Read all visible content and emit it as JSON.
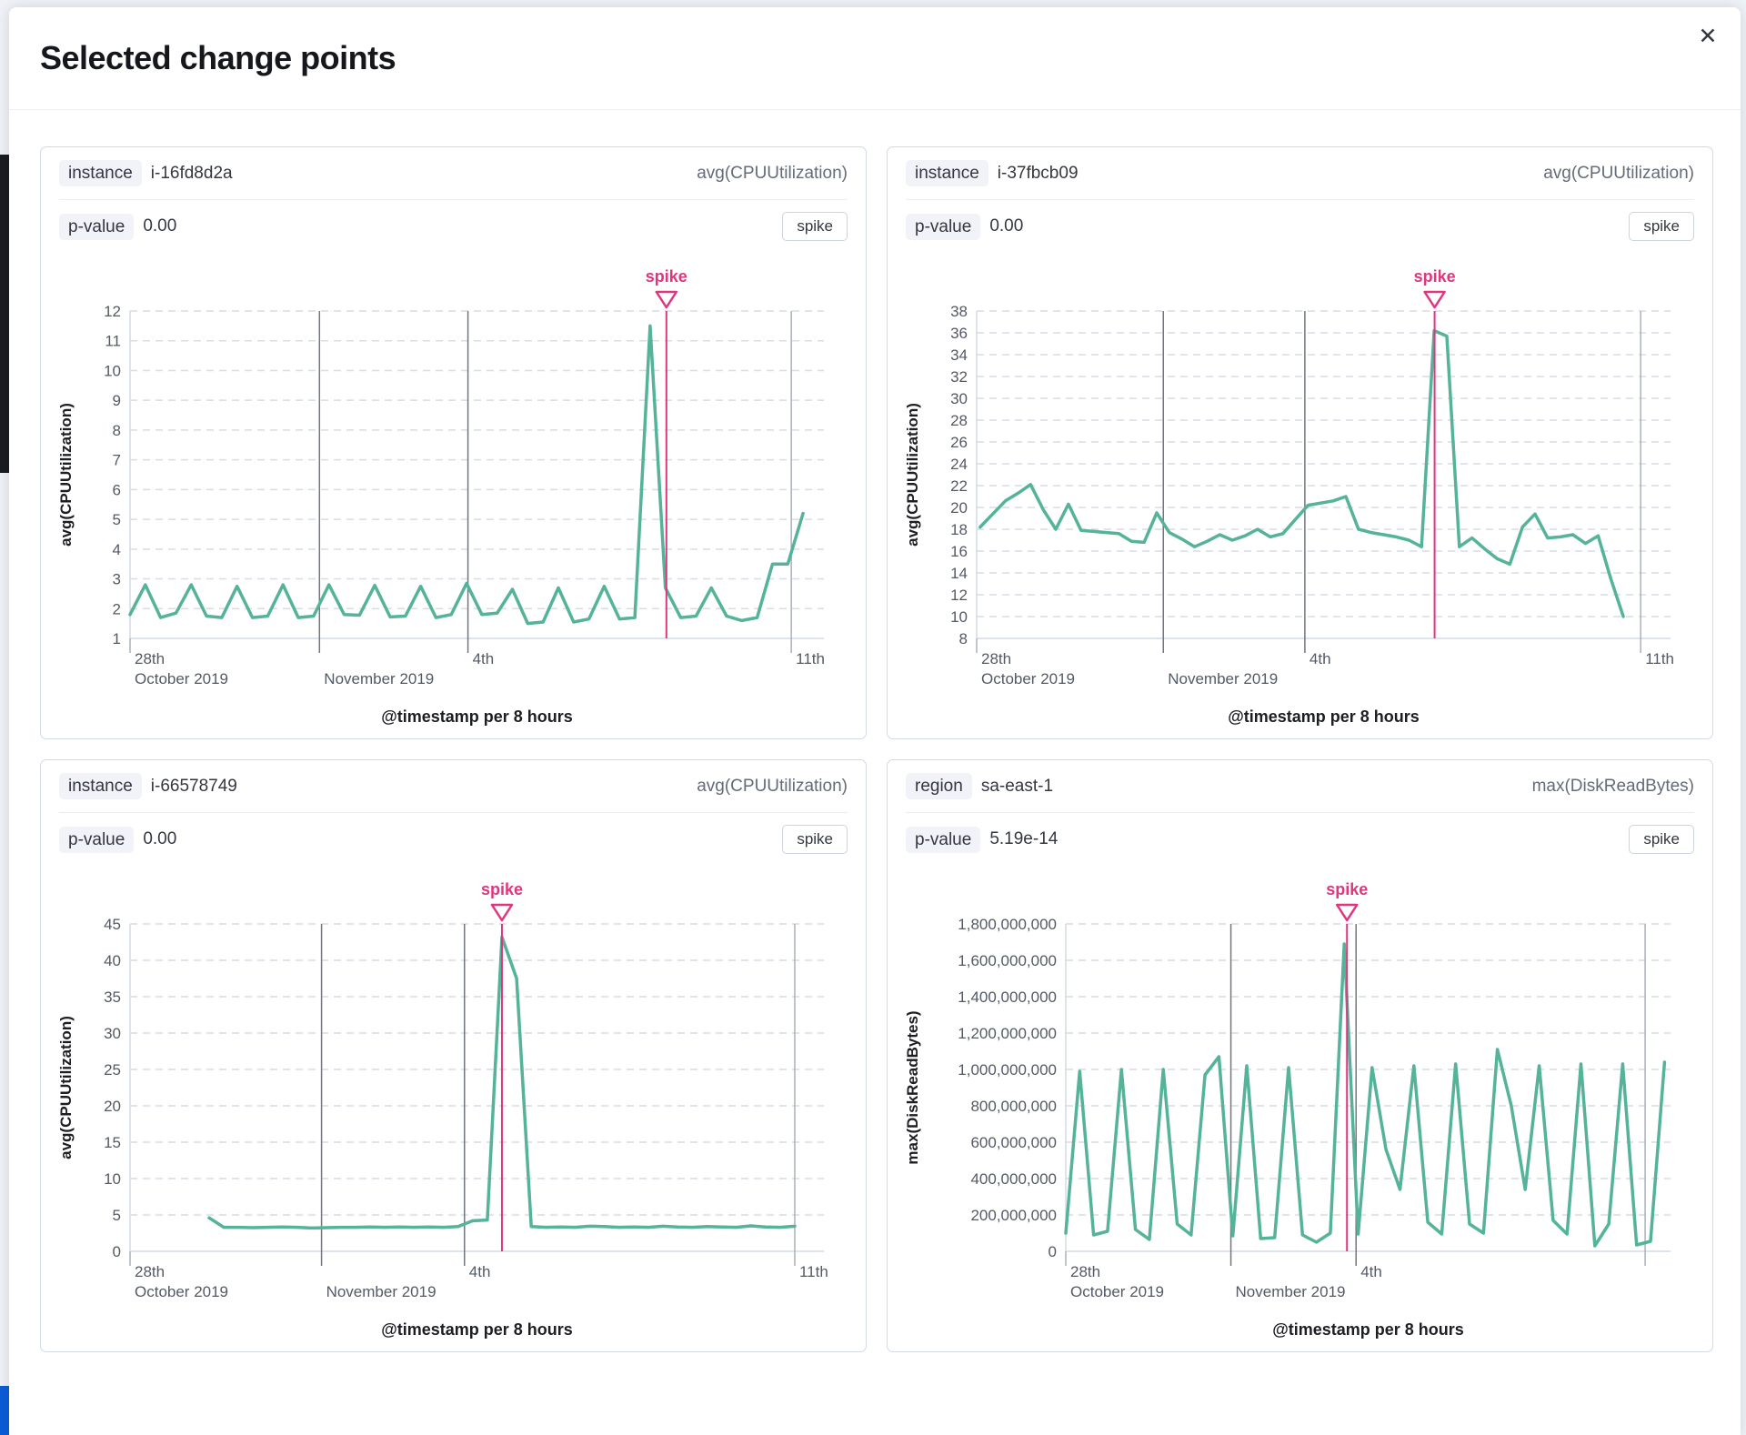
{
  "modal": {
    "title": "Selected change points",
    "close_icon": "✕"
  },
  "colors": {
    "series_green": "#54b399",
    "accent_pink": "#e0357f",
    "gridline": "#d8dce5",
    "axis_line": "#d3dae6",
    "vline_dark": "#717680",
    "vline_light": "#aab0bb",
    "tick_text": "#535a66",
    "axis_title_text": "#1d1e24"
  },
  "chart_data": [
    {
      "type": "line",
      "entity_badge": "instance",
      "entity_value": "i-16fd8d2a",
      "metric": "avg(CPUUtilization)",
      "p_value_label": "p-value",
      "p_value": "0.00",
      "change_point_type": "spike",
      "xlabel": "@timestamp per 8 hours",
      "ylabel": "avg(CPUUtilization)",
      "ylim": [
        1,
        12
      ],
      "ytick_step": 1,
      "ytick_format": "plain",
      "xticks": [
        {
          "pos": 0.0,
          "day": "28th",
          "month": "October 2019",
          "line": "tick"
        },
        {
          "pos": 0.273,
          "day": "",
          "month": "November 2019",
          "line": "dark"
        },
        {
          "pos": 0.487,
          "day": "4th",
          "month": "",
          "line": "dark"
        },
        {
          "pos": 0.953,
          "day": "11th",
          "month": "",
          "line": "light"
        }
      ],
      "annotation": {
        "label": "spike",
        "pos": 0.773
      },
      "x_start": 0.0,
      "x_end": 0.97,
      "values": [
        1.8,
        2.8,
        1.7,
        1.85,
        2.8,
        1.75,
        1.7,
        2.75,
        1.7,
        1.75,
        2.8,
        1.7,
        1.75,
        2.8,
        1.8,
        1.78,
        2.78,
        1.72,
        1.75,
        2.75,
        1.7,
        1.8,
        2.85,
        1.8,
        1.85,
        2.65,
        1.5,
        1.55,
        2.7,
        1.55,
        1.65,
        2.75,
        1.65,
        1.7,
        11.5,
        2.7,
        1.7,
        1.75,
        2.7,
        1.75,
        1.6,
        1.7,
        3.5,
        3.5,
        5.2
      ]
    },
    {
      "type": "line",
      "entity_badge": "instance",
      "entity_value": "i-37fbcb09",
      "metric": "avg(CPUUtilization)",
      "p_value_label": "p-value",
      "p_value": "0.00",
      "change_point_type": "spike",
      "xlabel": "@timestamp per 8 hours",
      "ylabel": "avg(CPUUtilization)",
      "ylim": [
        8,
        38
      ],
      "ytick_step": 2,
      "ytick_format": "plain",
      "xticks": [
        {
          "pos": 0.0,
          "day": "28th",
          "month": "October 2019",
          "line": "tick"
        },
        {
          "pos": 0.269,
          "day": "",
          "month": "November 2019",
          "line": "dark"
        },
        {
          "pos": 0.473,
          "day": "4th",
          "month": "",
          "line": "dark"
        },
        {
          "pos": 0.957,
          "day": "11th",
          "month": "",
          "line": "light"
        }
      ],
      "annotation": {
        "label": "spike",
        "pos": 0.66
      },
      "x_start": 0.005,
      "x_end": 0.932,
      "values": [
        18.2,
        19.4,
        20.6,
        21.3,
        22.1,
        19.8,
        18.0,
        20.3,
        17.9,
        17.8,
        17.7,
        17.6,
        16.9,
        16.8,
        19.5,
        17.7,
        17.1,
        16.4,
        16.9,
        17.5,
        17.0,
        17.4,
        18.0,
        17.3,
        17.6,
        18.9,
        20.2,
        20.4,
        20.6,
        21.0,
        18.0,
        17.7,
        17.5,
        17.3,
        17.0,
        16.4,
        36.2,
        35.7,
        16.4,
        17.2,
        16.2,
        15.3,
        14.8,
        18.2,
        19.4,
        17.2,
        17.3,
        17.5,
        16.7,
        17.4,
        13.5,
        10.0
      ]
    },
    {
      "type": "line",
      "entity_badge": "instance",
      "entity_value": "i-66578749",
      "metric": "avg(CPUUtilization)",
      "p_value_label": "p-value",
      "p_value": "0.00",
      "change_point_type": "spike",
      "xlabel": "@timestamp per 8 hours",
      "ylabel": "avg(CPUUtilization)",
      "ylim": [
        0,
        45
      ],
      "ytick_step": 5,
      "ytick_format": "plain",
      "xticks": [
        {
          "pos": 0.0,
          "day": "28th",
          "month": "October 2019",
          "line": "tick"
        },
        {
          "pos": 0.276,
          "day": "",
          "month": "November 2019",
          "line": "dark"
        },
        {
          "pos": 0.482,
          "day": "4th",
          "month": "",
          "line": "dark"
        },
        {
          "pos": 0.958,
          "day": "11th",
          "month": "",
          "line": "light"
        }
      ],
      "annotation": {
        "label": "spike",
        "pos": 0.536
      },
      "x_start": 0.114,
      "x_end": 0.958,
      "values": [
        4.6,
        3.3,
        3.3,
        3.25,
        3.3,
        3.35,
        3.3,
        3.2,
        3.25,
        3.3,
        3.3,
        3.35,
        3.3,
        3.35,
        3.3,
        3.35,
        3.3,
        3.4,
        4.2,
        4.3,
        43.2,
        37.5,
        3.4,
        3.3,
        3.35,
        3.3,
        3.45,
        3.4,
        3.3,
        3.35,
        3.3,
        3.45,
        3.35,
        3.3,
        3.4,
        3.35,
        3.3,
        3.5,
        3.35,
        3.3,
        3.45
      ]
    },
    {
      "type": "line",
      "entity_badge": "region",
      "entity_value": "sa-east-1",
      "metric": "max(DiskReadBytes)",
      "p_value_label": "p-value",
      "p_value": "5.19e-14",
      "change_point_type": "spike",
      "xlabel": "@timestamp per 8 hours",
      "ylabel": "max(DiskReadBytes)",
      "ylim": [
        0,
        1800000000
      ],
      "ytick_step": 200000000,
      "ytick_format": "comma",
      "xticks": [
        {
          "pos": 0.0,
          "day": "28th",
          "month": "October 2019",
          "line": "tick"
        },
        {
          "pos": 0.273,
          "day": "",
          "month": "November 2019",
          "line": "dark"
        },
        {
          "pos": 0.48,
          "day": "4th",
          "month": "",
          "line": "dark"
        },
        {
          "pos": 0.958,
          "day": "",
          "month": "",
          "line": "light"
        }
      ],
      "annotation": {
        "label": "spike",
        "pos": 0.465
      },
      "x_start": 0.0,
      "x_end": 0.99,
      "values": [
        100000000,
        990000000,
        90000000,
        110000000,
        1000000000,
        120000000,
        65000000,
        1000000000,
        150000000,
        90000000,
        970000000,
        1070000000,
        85000000,
        1020000000,
        70000000,
        75000000,
        1010000000,
        90000000,
        50000000,
        100000000,
        1690000000,
        95000000,
        1010000000,
        560000000,
        340000000,
        1020000000,
        160000000,
        95000000,
        1030000000,
        150000000,
        100000000,
        1110000000,
        800000000,
        340000000,
        1020000000,
        170000000,
        95000000,
        1030000000,
        30000000,
        150000000,
        1030000000,
        35000000,
        55000000,
        1040000000
      ]
    }
  ]
}
